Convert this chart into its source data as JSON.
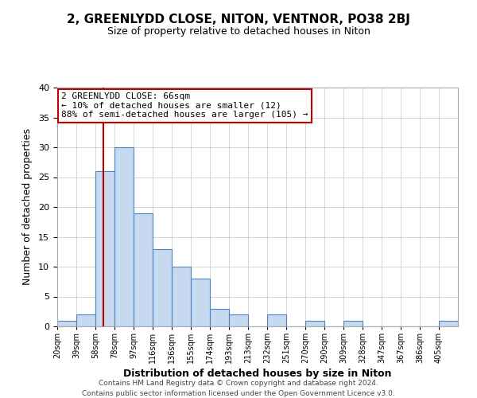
{
  "title": "2, GREENLYDD CLOSE, NITON, VENTNOR, PO38 2BJ",
  "subtitle": "Size of property relative to detached houses in Niton",
  "xlabel": "Distribution of detached houses by size in Niton",
  "ylabel": "Number of detached properties",
  "bin_edges": [
    20,
    39,
    58,
    77,
    96,
    115,
    134,
    153,
    172,
    191,
    210,
    229,
    248,
    267,
    286,
    305,
    324,
    343,
    362,
    381,
    400,
    419
  ],
  "bin_labels": [
    "20sqm",
    "39sqm",
    "58sqm",
    "78sqm",
    "97sqm",
    "116sqm",
    "136sqm",
    "155sqm",
    "174sqm",
    "193sqm",
    "213sqm",
    "232sqm",
    "251sqm",
    "270sqm",
    "290sqm",
    "309sqm",
    "328sqm",
    "347sqm",
    "367sqm",
    "386sqm",
    "405sqm"
  ],
  "counts": [
    1,
    2,
    26,
    30,
    19,
    13,
    10,
    8,
    3,
    2,
    0,
    2,
    0,
    1,
    0,
    1,
    0,
    0,
    0,
    0,
    1
  ],
  "bar_color": "#c6d9f1",
  "bar_edge_color": "#4f81bd",
  "property_line_x": 66,
  "property_line_color": "#c00000",
  "annotation_text": "2 GREENLYDD CLOSE: 66sqm\n← 10% of detached houses are smaller (12)\n88% of semi-detached houses are larger (105) →",
  "annotation_box_color": "#ffffff",
  "annotation_box_edge_color": "#c00000",
  "ylim": [
    0,
    40
  ],
  "yticks": [
    0,
    5,
    10,
    15,
    20,
    25,
    30,
    35,
    40
  ],
  "footer_line1": "Contains HM Land Registry data © Crown copyright and database right 2024.",
  "footer_line2": "Contains public sector information licensed under the Open Government Licence v3.0.",
  "background_color": "#ffffff",
  "grid_color": "#d0d0d0"
}
